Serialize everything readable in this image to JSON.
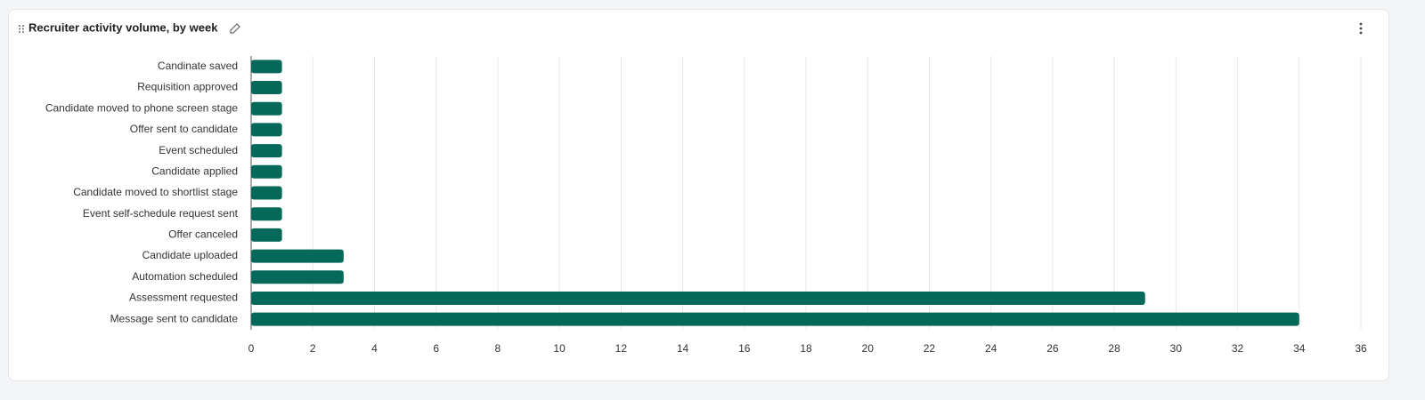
{
  "chart_data": {
    "type": "bar",
    "orientation": "horizontal",
    "title": "Recruiter activity volume, by week",
    "categories": [
      "Candinate saved",
      "Requisition approved",
      "Candidate moved to phone screen stage",
      "Offer sent to candidate",
      "Event scheduled",
      "Candidate applied",
      "Candidate moved to shortlist stage",
      "Event self-schedule request sent",
      "Offer canceled",
      "Candidate uploaded",
      "Automation scheduled",
      "Assessment requested",
      "Message sent to candidate"
    ],
    "values": [
      1,
      1,
      1,
      1,
      1,
      1,
      1,
      1,
      1,
      3,
      3,
      29,
      34
    ],
    "color": "#05695a",
    "xlim": [
      0,
      36
    ],
    "xticks": [
      0,
      2,
      4,
      6,
      8,
      10,
      12,
      14,
      16,
      18,
      20,
      22,
      24,
      26,
      28,
      30,
      32,
      34,
      36
    ],
    "grid": true
  }
}
